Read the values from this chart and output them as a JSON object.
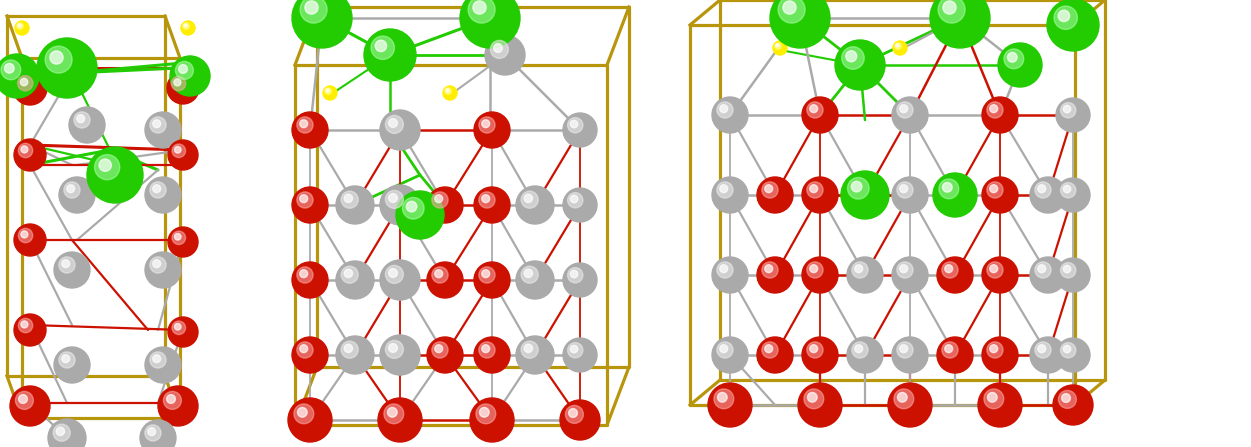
{
  "figure_width": 12.51,
  "figure_height": 4.47,
  "dpi": 100,
  "bg_color": "#ffffff",
  "colors": {
    "green": "#22cc00",
    "green_dark": "#118800",
    "green_light": "#aaffaa",
    "red": "#cc1100",
    "red_dark": "#880000",
    "red_light": "#ffaaaa",
    "gray": "#aaaaaa",
    "gray_dark": "#666666",
    "gray_light": "#eeeeee",
    "yellow": "#ffee00",
    "yellow_dark": "#998800",
    "gold": "#b8960c",
    "white": "#ffffff"
  }
}
